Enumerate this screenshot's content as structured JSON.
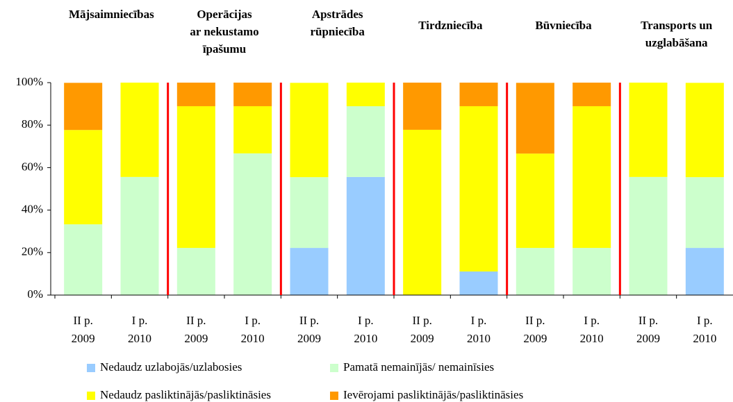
{
  "chart_data": {
    "type": "stacked_bar",
    "groups": [
      [
        "Mājsaimniecības"
      ],
      [
        "Operācijas",
        "ar nekustamo",
        "īpašumu"
      ],
      [
        "Apstrādes",
        "rūpniecība"
      ],
      [
        "Tirdzniecība"
      ],
      [
        "Būvniecība"
      ],
      [
        "Transports un",
        "uzglabāšana"
      ]
    ],
    "categories": [
      [
        "II p.",
        "2009"
      ],
      [
        "I p.",
        "2010"
      ],
      [
        "II p.",
        "2009"
      ],
      [
        "I p.",
        "2010"
      ],
      [
        "II p.",
        "2009"
      ],
      [
        "I p.",
        "2010"
      ],
      [
        "II p.",
        "2009"
      ],
      [
        "I p.",
        "2010"
      ],
      [
        "II p.",
        "2009"
      ],
      [
        "I p.",
        "2010"
      ],
      [
        "II p.",
        "2009"
      ],
      [
        "I p.",
        "2010"
      ]
    ],
    "series": [
      {
        "name": "Nedaudz uzlabojās/uzlabosies",
        "color": "#99ccff",
        "values": [
          0,
          0,
          0,
          0,
          22.2,
          55.6,
          0,
          11.1,
          0,
          0,
          0,
          22.2
        ]
      },
      {
        "name": "Pamatā nemainījās/ nemainīsies",
        "color": "#ccffcc",
        "values": [
          33.3,
          55.6,
          22.2,
          66.7,
          33.3,
          33.3,
          0,
          0,
          22.2,
          22.2,
          55.6,
          33.3
        ]
      },
      {
        "name": "Nedaudz pasliktinājās/pasliktināsies",
        "color": "#ffff00",
        "values": [
          44.4,
          44.4,
          66.7,
          22.2,
          44.4,
          11.1,
          77.8,
          77.8,
          44.4,
          66.7,
          44.4,
          44.4
        ]
      },
      {
        "name": "Ievērojami pasliktinājās/pasliktināsies",
        "color": "#ff9900",
        "values": [
          22.2,
          0,
          11.1,
          11.1,
          0,
          0,
          22.2,
          11.1,
          33.3,
          11.1,
          0,
          0
        ]
      }
    ],
    "ylim": [
      0,
      100
    ],
    "yticks": [
      {
        "value": 0,
        "label": "0%"
      },
      {
        "value": 20,
        "label": "20%"
      },
      {
        "value": 40,
        "label": "40%"
      },
      {
        "value": 60,
        "label": "60%"
      },
      {
        "value": 80,
        "label": "80%"
      },
      {
        "value": 100,
        "label": "100%"
      }
    ],
    "separator_color": "#ff0000"
  }
}
